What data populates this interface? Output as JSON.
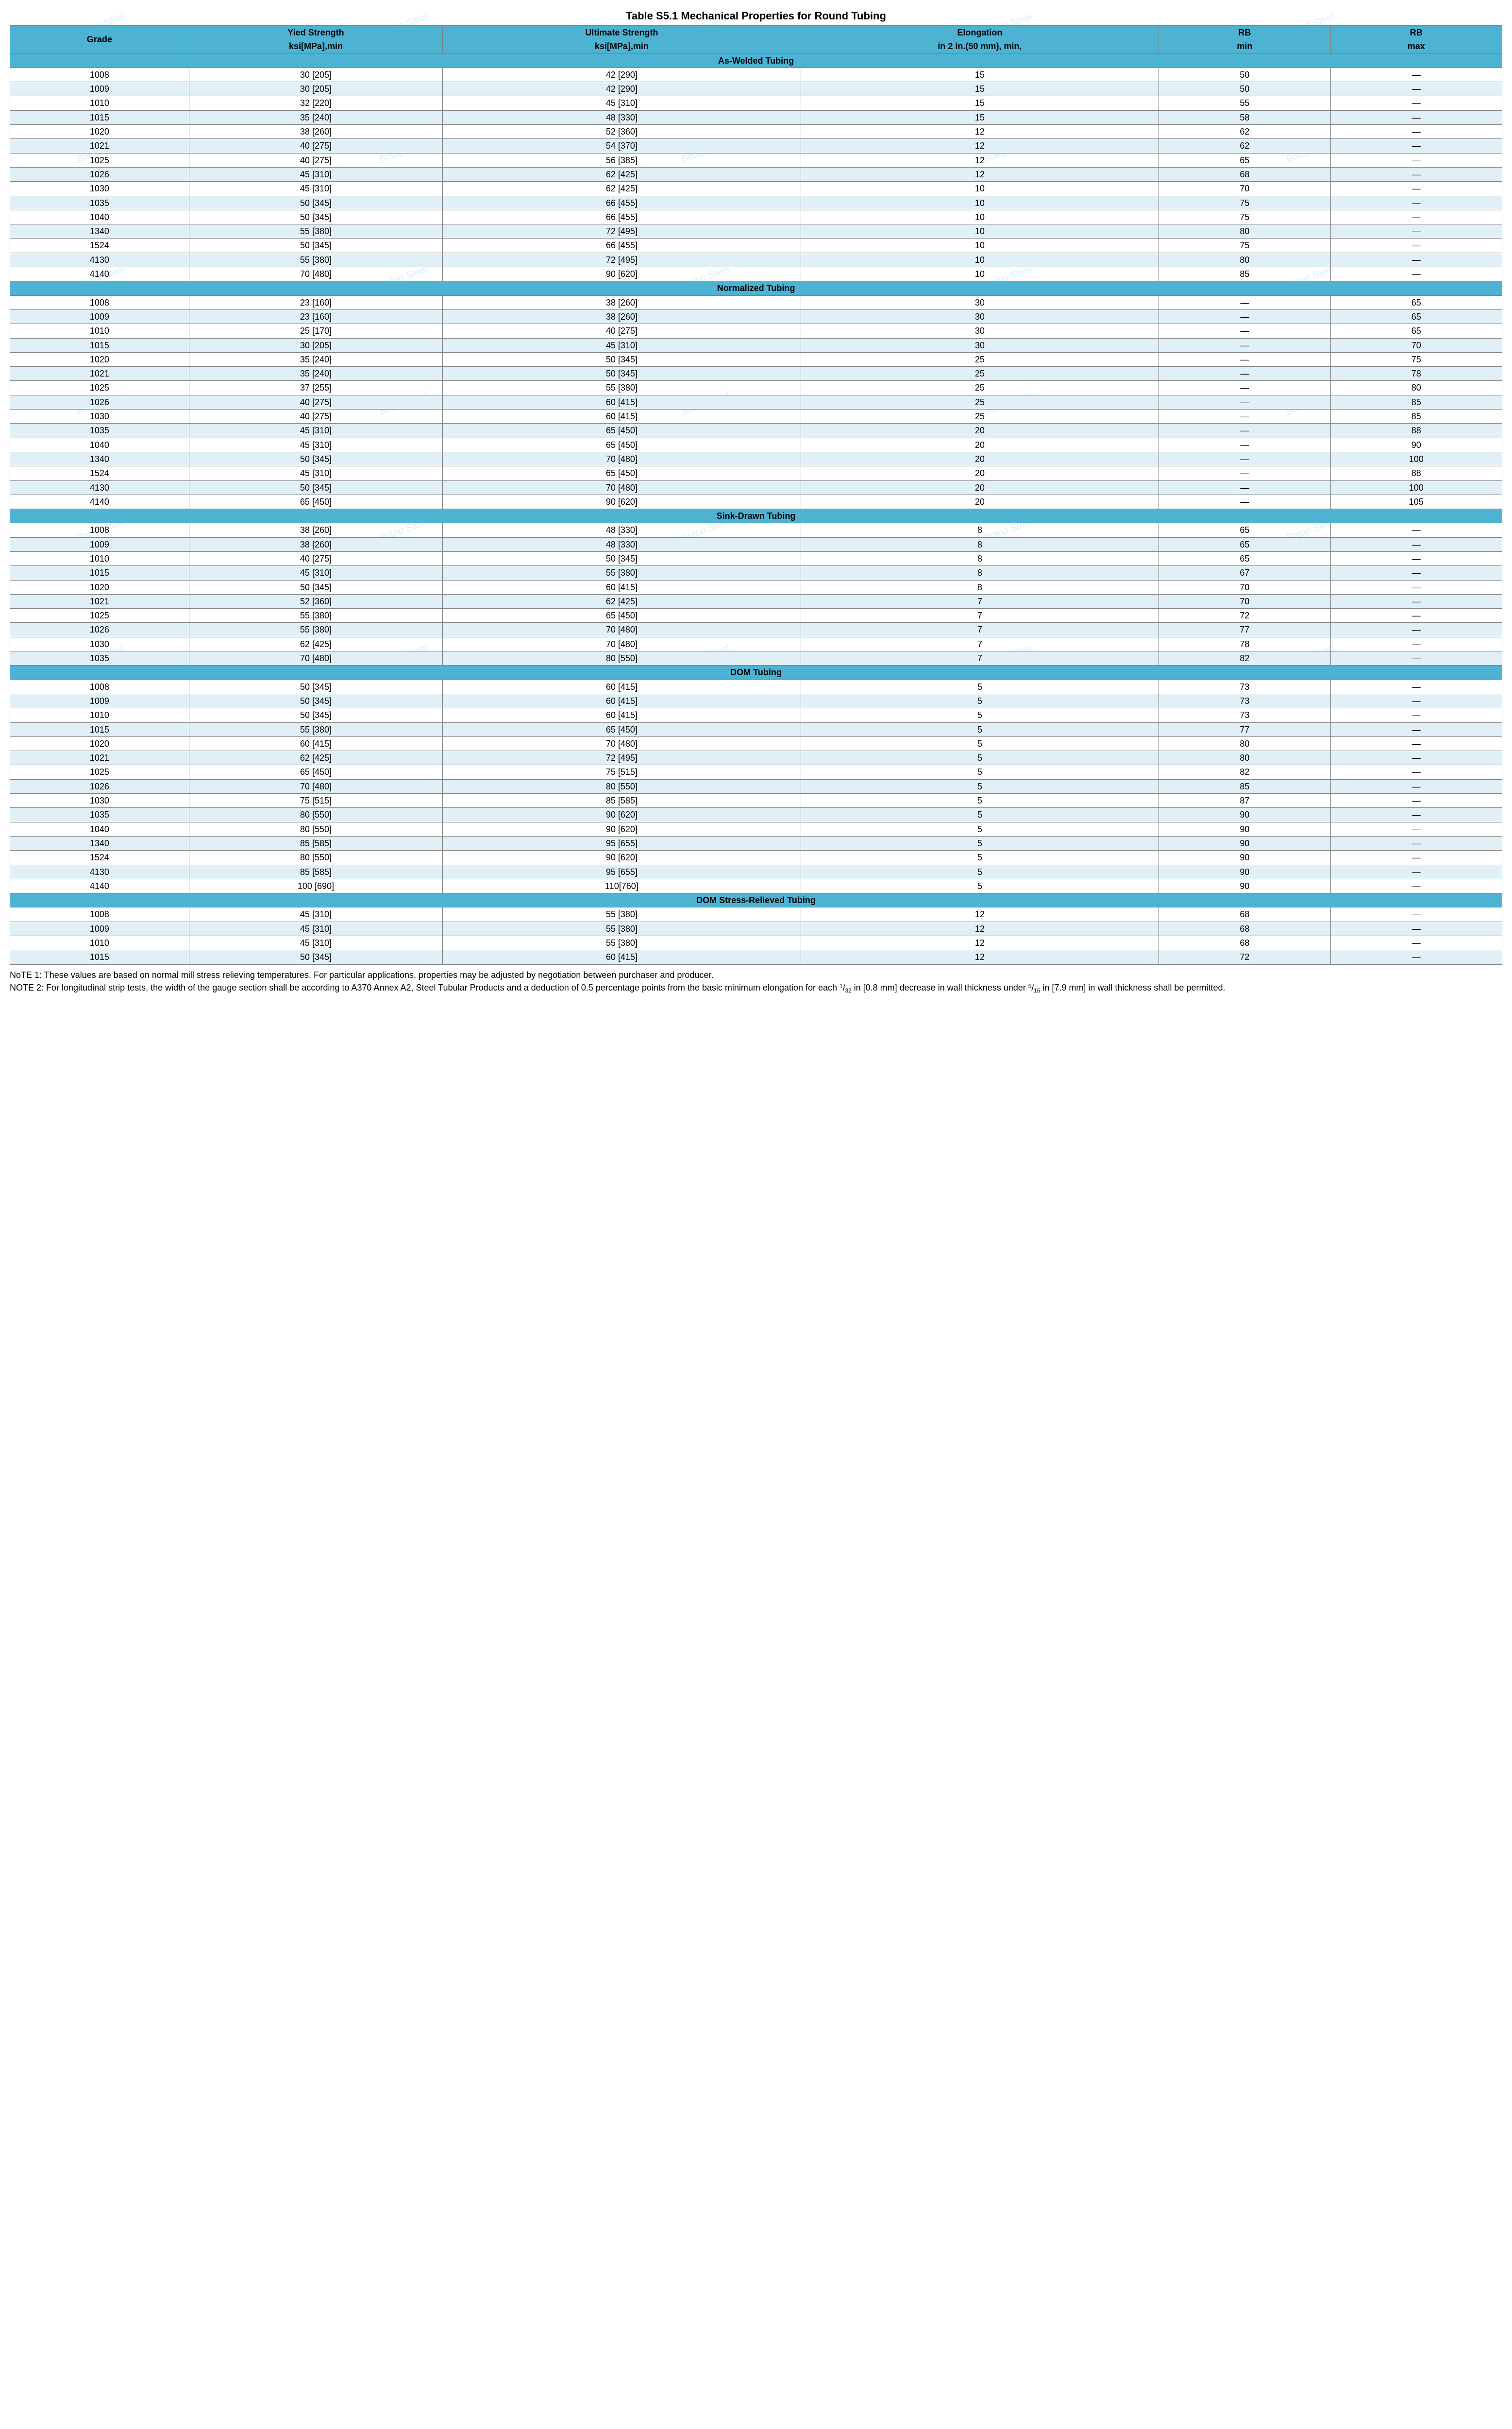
{
  "title": "Table S5.1 Mechanical Properties for Round Tubing",
  "colors": {
    "header_bg": "#4eb3d3",
    "alt_row_bg": "#e1f0f7",
    "border": "#808080",
    "watermark": "#cfe7f1"
  },
  "watermark_text": "Botop Steel",
  "columns": [
    {
      "top": "Grade",
      "bot": "",
      "cls": "col-grade",
      "rowspan": 2
    },
    {
      "top": "Yied Strength",
      "bot": "ksi[MPa],min",
      "cls": "col-yield"
    },
    {
      "top": "Ultimate Strength",
      "bot": "ksi[MPa],min",
      "cls": "col-ult"
    },
    {
      "top": "Elongation",
      "bot": "in 2 in.(50 mm), min,",
      "cls": "col-elong"
    },
    {
      "top": "RB",
      "bot": "min",
      "cls": "col-rbmin"
    },
    {
      "top": "RB",
      "bot": "max",
      "cls": "col-rbmax"
    }
  ],
  "sections": [
    {
      "title": "As-Welded Tubing",
      "rows": [
        [
          "1008",
          "30 [205]",
          "42 [290]",
          "15",
          "50",
          "—"
        ],
        [
          "1009",
          "30 [205]",
          "42 [290]",
          "15",
          "50",
          "—"
        ],
        [
          "1010",
          "32 [220]",
          "45 [310]",
          "15",
          "55",
          "—"
        ],
        [
          "1015",
          "35 [240]",
          "48 [330]",
          "15",
          "58",
          "—"
        ],
        [
          "1020",
          "38 [260]",
          "52 [360]",
          "12",
          "62",
          "—"
        ],
        [
          "1021",
          "40 [275]",
          "54 [370]",
          "12",
          "62",
          "—"
        ],
        [
          "1025",
          "40 [275]",
          "56 [385]",
          "12",
          "65",
          "—"
        ],
        [
          "1026",
          "45 [310]",
          "62 [425]",
          "12",
          "68",
          "—"
        ],
        [
          "1030",
          "45 [310]",
          "62 [425]",
          "10",
          "70",
          "—"
        ],
        [
          "1035",
          "50 [345]",
          "66 [455]",
          "10",
          "75",
          "—"
        ],
        [
          "1040",
          "50 [345]",
          "66 [455]",
          "10",
          "75",
          "—"
        ],
        [
          "1340",
          "55 [380]",
          "72 [495]",
          "10",
          "80",
          "—"
        ],
        [
          "1524",
          "50 [345]",
          "66 [455]",
          "10",
          "75",
          "—"
        ],
        [
          "4130",
          "55 [380]",
          "72 [495]",
          "10",
          "80",
          "—"
        ],
        [
          "4140",
          "70 [480]",
          "90 [620]",
          "10",
          "85",
          "—"
        ]
      ]
    },
    {
      "title": "Normalized Tubing",
      "rows": [
        [
          "1008",
          "23 [160]",
          "38 [260]",
          "30",
          "—",
          "65"
        ],
        [
          "1009",
          "23 [160]",
          "38 [260]",
          "30",
          "—",
          "65"
        ],
        [
          "1010",
          "25 [170]",
          "40 [275]",
          "30",
          "—",
          "65"
        ],
        [
          "1015",
          "30 [205]",
          "45 [310]",
          "30",
          "—",
          "70"
        ],
        [
          "1020",
          "35 [240]",
          "50 [345]",
          "25",
          "—",
          "75"
        ],
        [
          "1021",
          "35 [240]",
          "50 [345]",
          "25",
          "—",
          "78"
        ],
        [
          "1025",
          "37 [255]",
          "55 [380]",
          "25",
          "—",
          "80"
        ],
        [
          "1026",
          "40 [275]",
          "60 [415]",
          "25",
          "—",
          "85"
        ],
        [
          "1030",
          "40 [275]",
          "60 [415]",
          "25",
          "—",
          "85"
        ],
        [
          "1035",
          "45 [310]",
          "65 [450]",
          "20",
          "—",
          "88"
        ],
        [
          "1040",
          "45 [310]",
          "65 [450]",
          "20",
          "—",
          "90"
        ],
        [
          "1340",
          "50 [345]",
          "70 [480]",
          "20",
          "—",
          "100"
        ],
        [
          "1524",
          "45 [310]",
          "65 [450]",
          "20",
          "—",
          "88"
        ],
        [
          "4130",
          "50 [345]",
          "70 [480]",
          "20",
          "—",
          "100"
        ],
        [
          "4140",
          "65 [450]",
          "90 [620]",
          "20",
          "—",
          "105"
        ]
      ]
    },
    {
      "title": "Sink-Drawn Tubing",
      "rows": [
        [
          "1008",
          "38 [260]",
          "48 [330]",
          "8",
          "65",
          "—"
        ],
        [
          "1009",
          "38 [260]",
          "48 [330]",
          "8",
          "65",
          "—"
        ],
        [
          "1010",
          "40 [275]",
          "50 [345]",
          "8",
          "65",
          "—"
        ],
        [
          "1015",
          "45 [310]",
          "55 [380]",
          "8",
          "67",
          "—"
        ],
        [
          "1020",
          "50 [345]",
          "60 [415]",
          "8",
          "70",
          "—"
        ],
        [
          "1021",
          "52 [360]",
          "62 [425]",
          "7",
          "70",
          "—"
        ],
        [
          "1025",
          "55 [380]",
          "65 [450]",
          "7",
          "72",
          "—"
        ],
        [
          "1026",
          "55 [380]",
          "70 [480]",
          "7",
          "77",
          "—"
        ],
        [
          "1030",
          "62 [425]",
          "70 [480]",
          "7",
          "78",
          "—"
        ],
        [
          "1035",
          "70 [480]",
          "80 [550]",
          "7",
          "82",
          "—"
        ]
      ]
    },
    {
      "title": "DOM Tubing",
      "rows": [
        [
          "1008",
          "50 [345]",
          "60 [415]",
          "5",
          "73",
          "—"
        ],
        [
          "1009",
          "50 [345]",
          "60 [415]",
          "5",
          "73",
          "—"
        ],
        [
          "1010",
          "50 [345]",
          "60 [415]",
          "5",
          "73",
          "—"
        ],
        [
          "1015",
          "55 [380]",
          "65 [450]",
          "5",
          "77",
          "—"
        ],
        [
          "1020",
          "60 [415]",
          "70 [480]",
          "5",
          "80",
          "—"
        ],
        [
          "1021",
          "62 [425]",
          "72 [495]",
          "5",
          "80",
          "—"
        ],
        [
          "1025",
          "65 [450]",
          "75 [515]",
          "5",
          "82",
          "—"
        ],
        [
          "1026",
          "70 [480]",
          "80 [550]",
          "5",
          "85",
          "—"
        ],
        [
          "1030",
          "75 [515]",
          "85 [585]",
          "5",
          "87",
          "—"
        ],
        [
          "1035",
          "80 [550]",
          "90 [620]",
          "5",
          "90",
          "—"
        ],
        [
          "1040",
          "80 [550]",
          "90 [620]",
          "5",
          "90",
          "—"
        ],
        [
          "1340",
          "85 [585]",
          "95 [655]",
          "5",
          "90",
          "—"
        ],
        [
          "1524",
          "80 [550]",
          "90 [620]",
          "5",
          "90",
          "—"
        ],
        [
          "4130",
          "85 [585]",
          "95 [655]",
          "5",
          "90",
          "—"
        ],
        [
          "4140",
          "100 [690]",
          "110[760]",
          "5",
          "90",
          "—"
        ]
      ]
    },
    {
      "title": "DOM Stress-Relieved Tubing",
      "rows": [
        [
          "1008",
          "45 [310]",
          "55 [380]",
          "12",
          "68",
          "—"
        ],
        [
          "1009",
          "45 [310]",
          "55 [380]",
          "12",
          "68",
          "—"
        ],
        [
          "1010",
          "45 [310]",
          "55 [380]",
          "12",
          "68",
          "—"
        ],
        [
          "1015",
          "50 [345]",
          "60 [415]",
          "12",
          "72",
          "—"
        ]
      ]
    }
  ],
  "notes": {
    "note1": "NoTE 1: These values are based on normal mill stress relieving temperatures. For particular applications, properties may be adjusted by negotiation between purchaser and producer.",
    "note2_pre": "NOTE 2: For longitudinal strip tests, the width of the gauge section shall be according to A370 Annex A2, Steel Tubular Products and a deduction of 0.5 percentage points from the basic minimum elongation for each ",
    "note2_frac1_num": "1",
    "note2_frac1_den": "32",
    "note2_mid": " in [0.8 mm] decrease in wall thickness under ",
    "note2_frac2_num": "5",
    "note2_frac2_den": "16",
    "note2_post": " in [7.9 mm] in wall thickness shall be permitted."
  }
}
